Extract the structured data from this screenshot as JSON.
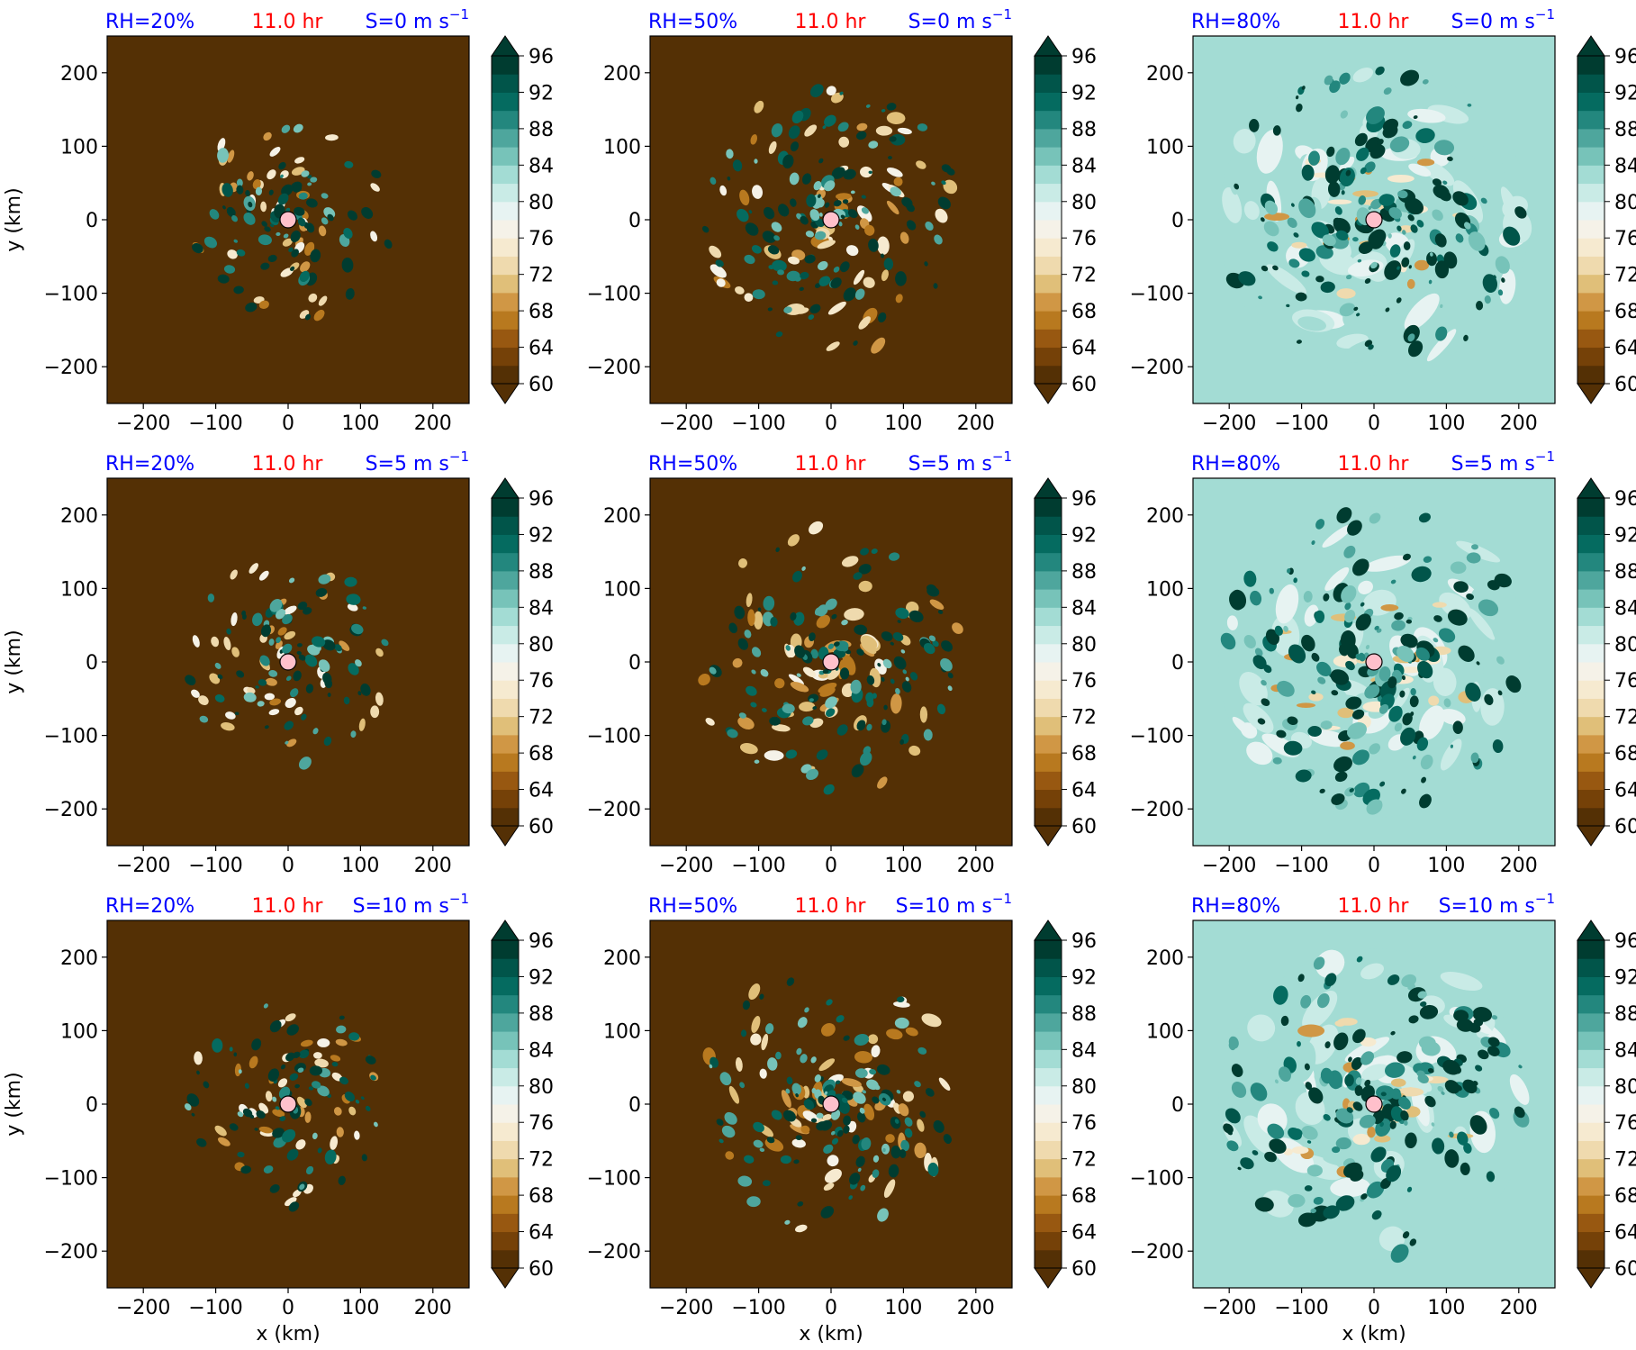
{
  "chart_data": {
    "type": "heatmap",
    "layout": {
      "rows": 3,
      "cols": 3
    },
    "axes": {
      "xlabel": "x (km)",
      "ylabel": "y (km)",
      "xlim": [
        -250,
        250
      ],
      "ylim": [
        -250,
        250
      ],
      "xticks": [
        -200,
        -100,
        0,
        100,
        200
      ],
      "yticks": [
        -200,
        -100,
        0,
        100,
        200
      ]
    },
    "colorbar": {
      "min": 60,
      "max": 100,
      "step": 2,
      "ticks": [
        60,
        64,
        68,
        72,
        76,
        80,
        84,
        88,
        92,
        96
      ],
      "extend": "both",
      "colormap": "BrBG",
      "colors": [
        "#543005",
        "#754108",
        "#985811",
        "#b8791f",
        "#d09745",
        "#e0bf79",
        "#efdaae",
        "#f6ead0",
        "#f5f2e8",
        "#e7f3f2",
        "#c9ebe6",
        "#a3dcd4",
        "#77c3b9",
        "#4ea69d",
        "#23877e",
        "#056b60",
        "#01554a",
        "#003c30"
      ],
      "under_color": "#543005",
      "over_color": "#003c30"
    },
    "center_marker": {
      "x": 0,
      "y": 0,
      "color": "#ffc0cb"
    },
    "panels": [
      {
        "rh": "RH=20%",
        "time": "11.0 hr",
        "shear": "S=0 m s",
        "sup": "−1",
        "background": 60,
        "activity": 0.28,
        "seed": 11
      },
      {
        "rh": "RH=50%",
        "time": "11.0 hr",
        "shear": "S=0 m s",
        "sup": "−1",
        "background": 60,
        "activity": 0.62,
        "seed": 12
      },
      {
        "rh": "RH=80%",
        "time": "11.0 hr",
        "shear": "S=0 m s",
        "sup": "−1",
        "background": 83,
        "activity": 1.0,
        "seed": 13
      },
      {
        "rh": "RH=20%",
        "time": "11.0 hr",
        "shear": "S=5 m s",
        "sup": "−1",
        "background": 60,
        "activity": 0.28,
        "seed": 21
      },
      {
        "rh": "RH=50%",
        "time": "11.0 hr",
        "shear": "S=5 m s",
        "sup": "−1",
        "background": 60,
        "activity": 0.62,
        "seed": 22
      },
      {
        "rh": "RH=80%",
        "time": "11.0 hr",
        "shear": "S=5 m s",
        "sup": "−1",
        "background": 83,
        "activity": 1.0,
        "seed": 23
      },
      {
        "rh": "RH=20%",
        "time": "11.0 hr",
        "shear": "S=10 m s",
        "sup": "−1",
        "background": 60,
        "activity": 0.28,
        "seed": 31
      },
      {
        "rh": "RH=50%",
        "time": "11.0 hr",
        "shear": "S=10 m s",
        "sup": "−1",
        "background": 60,
        "activity": 0.62,
        "seed": 32
      },
      {
        "rh": "RH=80%",
        "time": "11.0 hr",
        "shear": "S=10 m s",
        "sup": "−1",
        "background": 83,
        "activity": 1.0,
        "seed": 33
      }
    ]
  }
}
